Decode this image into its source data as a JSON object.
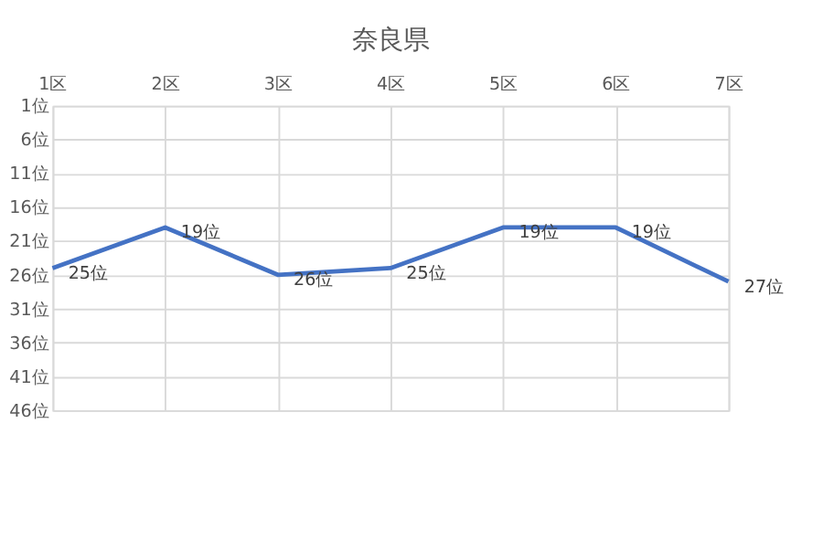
{
  "chart_data": {
    "type": "line",
    "title": "奈良県",
    "categories": [
      "1区",
      "2区",
      "3区",
      "4区",
      "5区",
      "6区",
      "7区"
    ],
    "series": [
      {
        "color": "#4472c4",
        "values": [
          25,
          19,
          26,
          25,
          19,
          19,
          27
        ],
        "value_labels": [
          "25位",
          "19位",
          "26位",
          "25位",
          "19位",
          "19位",
          "27位"
        ]
      }
    ],
    "ylim": [
      46,
      1
    ],
    "yticks": [
      {
        "value": 1,
        "label": "1位"
      },
      {
        "value": 6,
        "label": "6位"
      },
      {
        "value": 11,
        "label": "11位"
      },
      {
        "value": 16,
        "label": "16位"
      },
      {
        "value": 21,
        "label": "21位"
      },
      {
        "value": 26,
        "label": "26位"
      },
      {
        "value": 31,
        "label": "31位"
      },
      {
        "value": 36,
        "label": "36位"
      },
      {
        "value": 41,
        "label": "41位"
      },
      {
        "value": 46,
        "label": "46位"
      }
    ],
    "grid": true,
    "marker": "none",
    "line_style": "solid",
    "legend": false
  }
}
